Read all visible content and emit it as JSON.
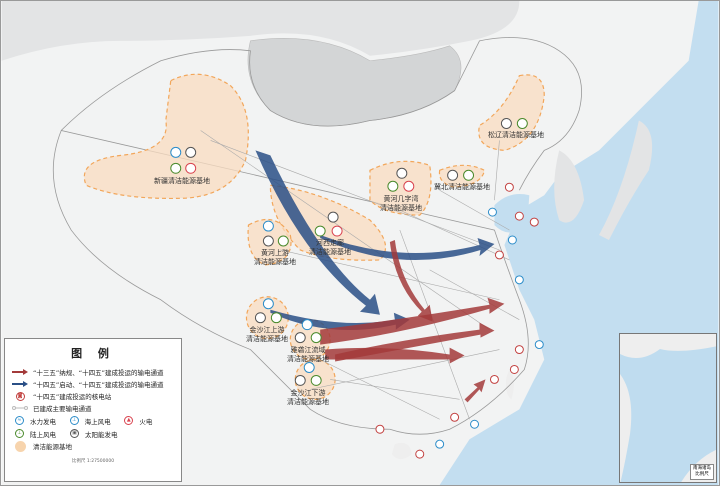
{
  "legend": {
    "title": "图 例",
    "items": [
      {
        "label": "“十三五”纳规、“十四五”建成投运的输电通道",
        "icon": "red-arrow",
        "color": "#a33a3a"
      },
      {
        "label": "“十四五”启动、“十四五”建成投运的输电通道",
        "icon": "blue-arrow",
        "color": "#2a4f86"
      },
      {
        "label": "“十四五”建成投运的核电站",
        "icon": "nuclear-icon",
        "color": "#c2403f"
      },
      {
        "label": "已建成主要输电通道",
        "icon": "line-icon",
        "color": "#aaaaaa"
      }
    ],
    "power_types": [
      {
        "label": "水力发电",
        "icon": "hydro-icon",
        "color": "#2b8cc9"
      },
      {
        "label": "海上风电",
        "icon": "offshore-wind-icon",
        "color": "#2b8cc9"
      },
      {
        "label": "火电",
        "icon": "thermal-icon",
        "color": "#d9434f"
      },
      {
        "label": "陆上风电",
        "icon": "onshore-wind-icon",
        "color": "#4a8a2c"
      },
      {
        "label": "太阳能发电",
        "icon": "solar-icon",
        "color": "#555555"
      }
    ],
    "base_label": "清洁能源基地",
    "base_color": "#f7d4ad",
    "scale": "比例尺 1:27500000"
  },
  "bases": [
    {
      "name": "新疆清洁能源基地",
      "lines": [
        "新疆清洁能源基地"
      ]
    },
    {
      "name": "黄河上游清洁能源基地",
      "lines": [
        "黄河上游",
        "清洁能源基地"
      ]
    },
    {
      "name": "河西走廊清洁能源基地",
      "lines": [
        "河西走廊",
        "清洁能源基地"
      ]
    },
    {
      "name": "黄河几字湾清洁能源基地",
      "lines": [
        "黄河几字湾",
        "清洁能源基地"
      ]
    },
    {
      "name": "冀北清洁能源基地",
      "lines": [
        "冀北清洁能源基地"
      ]
    },
    {
      "name": "松辽清洁能源基地",
      "lines": [
        "松辽清洁能源基地"
      ]
    },
    {
      "name": "金沙江上游清洁能源基地",
      "lines": [
        "金沙江上游",
        "清洁能源基地"
      ]
    },
    {
      "name": "雅砻江流域清洁能源基地",
      "lines": [
        "雅砻江流域",
        "清洁能源基地"
      ]
    },
    {
      "name": "金沙江下游清洁能源基地",
      "lines": [
        "金沙江下游",
        "清洁能源基地"
      ]
    }
  ],
  "inset": {
    "title": "南海诸岛",
    "scale": "比例尺"
  }
}
